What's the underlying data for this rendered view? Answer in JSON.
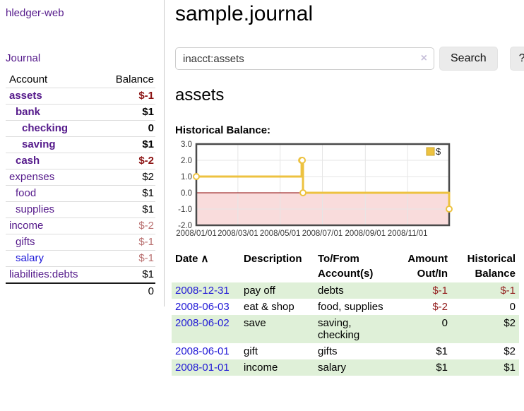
{
  "app": {
    "brand": "hledger-web"
  },
  "sidebar": {
    "journal_link": "Journal",
    "table_headers": {
      "account": "Account",
      "balance": "Balance"
    },
    "accounts": [
      {
        "name": "assets",
        "balance": "$-1",
        "indent": 1,
        "bold": true,
        "name_style": "purple",
        "balance_style": "neg-strong"
      },
      {
        "name": "bank",
        "balance": "$1",
        "indent": 2,
        "bold": true,
        "name_style": "purple",
        "balance_style": "plain"
      },
      {
        "name": "checking",
        "balance": "0",
        "indent": 3,
        "bold": true,
        "name_style": "purple",
        "balance_style": "plain"
      },
      {
        "name": "saving",
        "balance": "$1",
        "indent": 3,
        "bold": true,
        "name_style": "purple",
        "balance_style": "plain"
      },
      {
        "name": "cash",
        "balance": "$-2",
        "indent": 2,
        "bold": true,
        "name_style": "purple",
        "balance_style": "neg-strong"
      },
      {
        "name": "expenses",
        "balance": "$2",
        "indent": 1,
        "bold": false,
        "name_style": "purple",
        "balance_style": "plain"
      },
      {
        "name": "food",
        "balance": "$1",
        "indent": 2,
        "bold": false,
        "name_style": "purple",
        "balance_style": "plain"
      },
      {
        "name": "supplies",
        "balance": "$1",
        "indent": 2,
        "bold": false,
        "name_style": "purple",
        "balance_style": "plain"
      },
      {
        "name": "income",
        "balance": "$-2",
        "indent": 1,
        "bold": false,
        "name_style": "purple",
        "balance_style": "neg-soft"
      },
      {
        "name": "gifts",
        "balance": "$-1",
        "indent": 2,
        "bold": false,
        "name_style": "purple",
        "balance_style": "neg-soft"
      },
      {
        "name": "salary",
        "balance": "$-1",
        "indent": 2,
        "bold": false,
        "name_style": "blue",
        "balance_style": "neg-soft"
      },
      {
        "name": "liabilities:debts",
        "balance": "$1",
        "indent": 1,
        "bold": false,
        "name_style": "purple",
        "balance_style": "plain"
      }
    ],
    "total": "0"
  },
  "main": {
    "title": "sample.journal",
    "search": {
      "value": "inacct:assets",
      "clear_icon": "×",
      "search_button": "Search",
      "help_button": "?"
    },
    "account_heading": "assets",
    "chart_title": "Historical Balance:",
    "register": {
      "columns": [
        {
          "label": "Date",
          "sort_indicator": "∧",
          "align": "left"
        },
        {
          "label": "Description",
          "align": "left"
        },
        {
          "label": "To/From Account(s)",
          "align": "left"
        },
        {
          "label": "Amount Out/In",
          "align": "right"
        },
        {
          "label": "Historical Balance",
          "align": "right"
        }
      ],
      "rows": [
        {
          "date": "2008-12-31",
          "description": "pay off",
          "accounts": "debts",
          "amount": "$-1",
          "balance": "$-1",
          "amount_negative": true,
          "balance_negative": true,
          "shaded": true
        },
        {
          "date": "2008-06-03",
          "description": "eat & shop",
          "accounts": "food, supplies",
          "amount": "$-2",
          "balance": "0",
          "amount_negative": true,
          "balance_negative": false,
          "shaded": false
        },
        {
          "date": "2008-06-02",
          "description": "save",
          "accounts": "saving,\nchecking",
          "amount": "0",
          "balance": "$2",
          "amount_negative": false,
          "balance_negative": false,
          "shaded": true
        },
        {
          "date": "2008-06-01",
          "description": "gift",
          "accounts": "gifts",
          "amount": "$1",
          "balance": "$2",
          "amount_negative": false,
          "balance_negative": false,
          "shaded": false
        },
        {
          "date": "2008-01-01",
          "description": "income",
          "accounts": "salary",
          "amount": "$1",
          "balance": "$1",
          "amount_negative": false,
          "balance_negative": false,
          "shaded": true
        }
      ]
    }
  },
  "chart_data": {
    "type": "line",
    "title": "Historical Balance",
    "step": true,
    "xlim_days": [
      0,
      365
    ],
    "ylim": [
      -2,
      3
    ],
    "x_ticks": [
      {
        "label": "2008/01/01",
        "day": 0
      },
      {
        "label": "2008/03/01",
        "day": 60
      },
      {
        "label": "2008/05/01",
        "day": 121
      },
      {
        "label": "2008/07/01",
        "day": 182
      },
      {
        "label": "2008/09/01",
        "day": 244
      },
      {
        "label": "2008/11/01",
        "day": 305
      }
    ],
    "y_ticks": [
      "3.0",
      "2.0",
      "1.0",
      "0.0",
      "-1.0",
      "-2.0"
    ],
    "series": [
      {
        "name": "$",
        "color": "#edc240",
        "points": [
          {
            "date": "2008-01-01",
            "day": 0,
            "value": 1
          },
          {
            "date": "2008-06-01",
            "day": 152,
            "value": 2
          },
          {
            "date": "2008-06-02",
            "day": 153,
            "value": 2
          },
          {
            "date": "2008-06-03",
            "day": 154,
            "value": 0
          },
          {
            "date": "2008-12-31",
            "day": 365,
            "value": -1
          }
        ]
      }
    ],
    "legend": {
      "label": "$",
      "position": "top-right"
    },
    "colors": {
      "line": "#edc240",
      "marker_fill": "#ffffff",
      "negative_fill": "#f9dcdc",
      "zero_line": "#8b0000",
      "grid": "#e6e6e6",
      "border": "#4a4a4a",
      "tick_text": "#3c3c3c"
    }
  }
}
